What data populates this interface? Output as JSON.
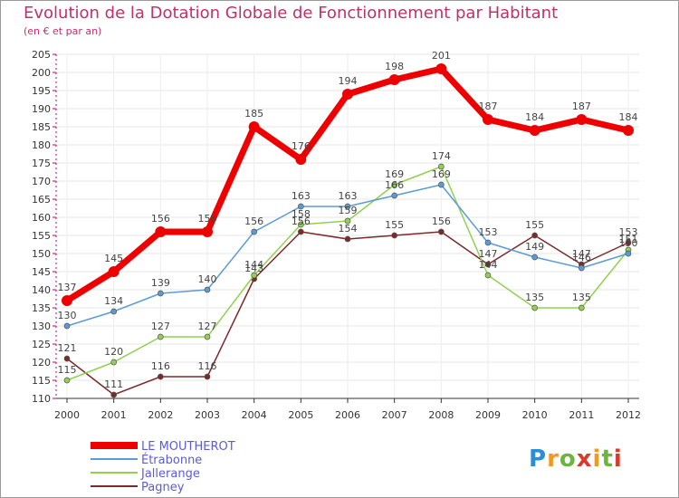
{
  "title": "Evolution de la Dotation Globale de Fonctionnement par Habitant",
  "subtitle": "(en € et par an)",
  "logo": "Proxiti",
  "chart_data": {
    "type": "line",
    "title": "Evolution de la Dotation Globale de Fonctionnement par Habitant",
    "subtitle": "(en € et par an)",
    "x": [
      "2000",
      "2001",
      "2002",
      "2003",
      "2004",
      "2005",
      "2006",
      "2007",
      "2008",
      "2009",
      "2010",
      "2011",
      "2012"
    ],
    "ylim": [
      110,
      205
    ],
    "ytick_step": 5,
    "grid": true,
    "legend_position": "bottom-left",
    "series": [
      {
        "name": "LE MOUTHEROT",
        "color": "#ee0000",
        "values": [
          137,
          145,
          156,
          156,
          185,
          176,
          194,
          198,
          201,
          187,
          184,
          187,
          184
        ]
      },
      {
        "name": "Étrabonne",
        "color": "#5b9bd5",
        "values": [
          130,
          134,
          139,
          140,
          156,
          163,
          163,
          166,
          169,
          153,
          149,
          146,
          150
        ]
      },
      {
        "name": "Jallerange",
        "color": "#92d050",
        "values": [
          115,
          120,
          127,
          127,
          144,
          158,
          159,
          169,
          174,
          144,
          135,
          135,
          151
        ]
      },
      {
        "name": "Pagney",
        "color": "#7b2a2a",
        "values": [
          121,
          111,
          116,
          116,
          143,
          156,
          154,
          155,
          156,
          147,
          155,
          147,
          153
        ]
      }
    ]
  }
}
